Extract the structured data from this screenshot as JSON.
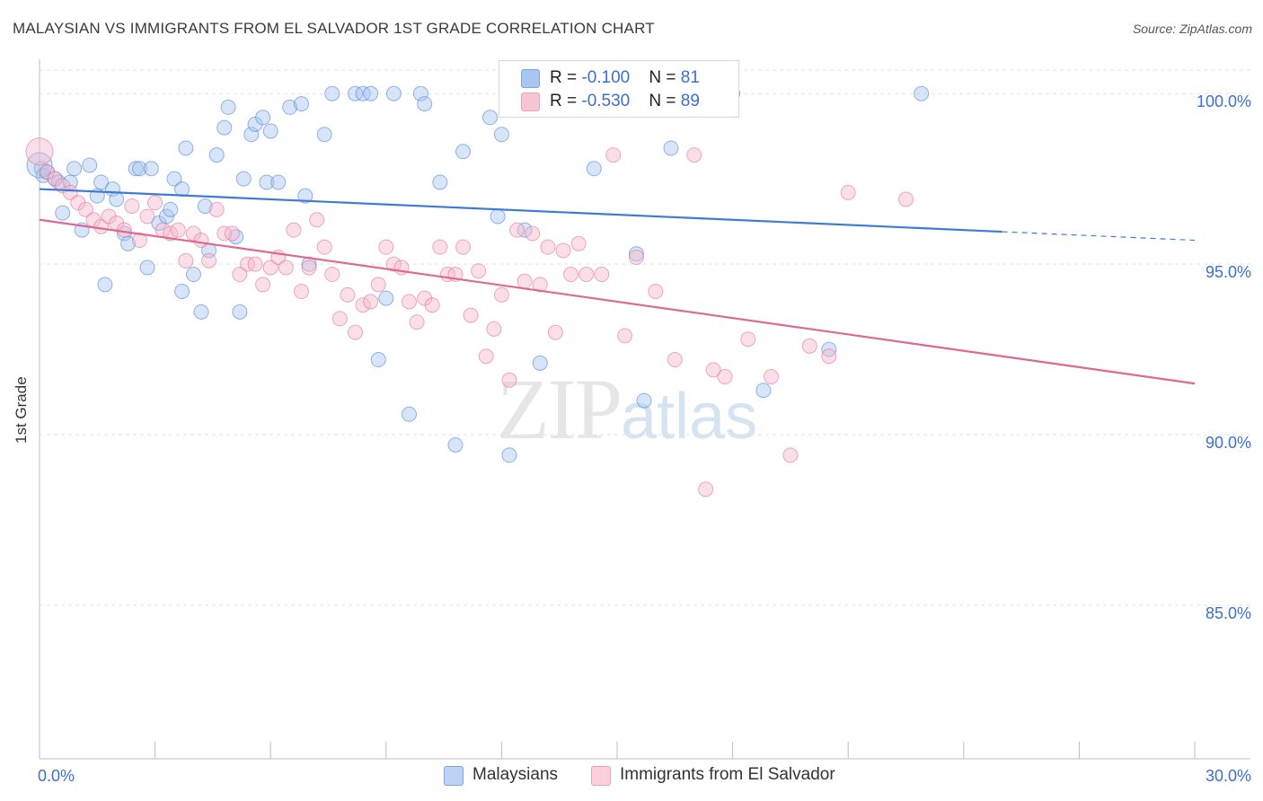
{
  "title": "MALAYSIAN VS IMMIGRANTS FROM EL SALVADOR 1ST GRADE CORRELATION CHART",
  "source": "Source: ZipAtlas.com",
  "watermark": {
    "zip": "ZIP",
    "atlas": "atlas"
  },
  "legend": {
    "rows": [
      {
        "r_label": "R = ",
        "r_value": "-0.100",
        "n_label": "N = ",
        "n_value": "81",
        "color": "#a9c6f0"
      },
      {
        "r_label": "R = ",
        "r_value": "-0.530",
        "n_label": "N = ",
        "n_value": "89",
        "color": "#f7b8cb"
      }
    ]
  },
  "bottom_legend": [
    {
      "label": "Malaysians",
      "color": "#a9c6f0"
    },
    {
      "label": "Immigrants from El Salvador",
      "color": "#f7b8cb"
    }
  ],
  "chart_data": {
    "type": "scatter",
    "xlabel": "",
    "ylabel": "1st Grade",
    "xlim": [
      0,
      30
    ],
    "ylim": [
      80.5,
      100.9
    ],
    "x_tick_labels": [
      "0.0%",
      "30.0%"
    ],
    "y_ticks": [
      85,
      90,
      95,
      100
    ],
    "y_tick_labels": [
      "85.0%",
      "90.0%",
      "95.0%",
      "100.0%"
    ],
    "grid": true,
    "series": [
      {
        "name": "Malaysians",
        "color": "#3f7bd6",
        "fill": "#a9c6f0",
        "trend": {
          "x0": 0,
          "y0": 97.2,
          "x1": 25.0,
          "y1": 95.95,
          "dash_to_x": 30,
          "dash_y1": 95.7
        },
        "points": [
          [
            0.05,
            97.8
          ],
          [
            0.1,
            97.6
          ],
          [
            0.2,
            97.7
          ],
          [
            0.4,
            97.5
          ],
          [
            0.5,
            97.4
          ],
          [
            0.6,
            96.5
          ],
          [
            0.8,
            97.4
          ],
          [
            0.9,
            97.8
          ],
          [
            1.1,
            96.0
          ],
          [
            1.3,
            97.9
          ],
          [
            1.5,
            97.0
          ],
          [
            1.6,
            97.4
          ],
          [
            1.7,
            94.4
          ],
          [
            1.9,
            97.2
          ],
          [
            2.0,
            96.9
          ],
          [
            2.2,
            95.9
          ],
          [
            2.3,
            95.6
          ],
          [
            2.5,
            97.8
          ],
          [
            2.6,
            97.8
          ],
          [
            2.8,
            94.9
          ],
          [
            2.9,
            97.8
          ],
          [
            3.1,
            96.2
          ],
          [
            3.3,
            96.4
          ],
          [
            3.4,
            96.6
          ],
          [
            3.5,
            97.5
          ],
          [
            3.7,
            97.2
          ],
          [
            3.7,
            94.2
          ],
          [
            3.8,
            98.4
          ],
          [
            4.0,
            94.7
          ],
          [
            4.2,
            93.6
          ],
          [
            4.3,
            96.7
          ],
          [
            4.4,
            95.4
          ],
          [
            4.6,
            98.2
          ],
          [
            4.8,
            99.0
          ],
          [
            4.9,
            99.6
          ],
          [
            5.1,
            95.8
          ],
          [
            5.2,
            93.6
          ],
          [
            5.3,
            97.5
          ],
          [
            5.5,
            98.8
          ],
          [
            5.6,
            99.1
          ],
          [
            5.8,
            99.3
          ],
          [
            5.9,
            97.4
          ],
          [
            6.0,
            98.9
          ],
          [
            6.2,
            97.4
          ],
          [
            6.5,
            99.6
          ],
          [
            6.8,
            99.7
          ],
          [
            6.9,
            97.0
          ],
          [
            7.0,
            95.0
          ],
          [
            7.4,
            98.8
          ],
          [
            7.6,
            100.0
          ],
          [
            8.2,
            100.0
          ],
          [
            8.4,
            100.0
          ],
          [
            8.6,
            100.0
          ],
          [
            8.8,
            92.2
          ],
          [
            9.0,
            94.0
          ],
          [
            9.2,
            100.0
          ],
          [
            9.6,
            90.6
          ],
          [
            9.9,
            100.0
          ],
          [
            10.0,
            99.7
          ],
          [
            10.4,
            97.4
          ],
          [
            10.8,
            89.7
          ],
          [
            11.0,
            98.3
          ],
          [
            11.7,
            99.3
          ],
          [
            11.9,
            96.4
          ],
          [
            12.0,
            98.8
          ],
          [
            12.2,
            89.4
          ],
          [
            12.5,
            99.6
          ],
          [
            12.6,
            96.0
          ],
          [
            13.0,
            92.1
          ],
          [
            13.3,
            100.0
          ],
          [
            14.4,
            97.8
          ],
          [
            14.8,
            100.0
          ],
          [
            15.5,
            95.3
          ],
          [
            15.7,
            91.0
          ],
          [
            16.0,
            100.0
          ],
          [
            16.4,
            98.4
          ],
          [
            18.0,
            100.0
          ],
          [
            18.8,
            91.3
          ],
          [
            20.5,
            92.5
          ],
          [
            22.9,
            100.0
          ],
          [
            0.0,
            97.9
          ]
        ],
        "sizes": {
          "0.0": 28
        }
      },
      {
        "name": "Immigrants from El Salvador",
        "color": "#e0678f",
        "fill": "#f7b8cb",
        "trend": {
          "x0": 0,
          "y0": 96.3,
          "x1": 30,
          "y1": 91.5
        },
        "points": [
          [
            0.0,
            98.3
          ],
          [
            0.2,
            97.7
          ],
          [
            0.4,
            97.5
          ],
          [
            0.6,
            97.3
          ],
          [
            0.8,
            97.1
          ],
          [
            1.0,
            96.8
          ],
          [
            1.2,
            96.6
          ],
          [
            1.4,
            96.3
          ],
          [
            1.6,
            96.1
          ],
          [
            1.8,
            96.4
          ],
          [
            2.0,
            96.2
          ],
          [
            2.2,
            96.0
          ],
          [
            2.4,
            96.7
          ],
          [
            2.6,
            95.7
          ],
          [
            2.8,
            96.4
          ],
          [
            3.0,
            96.8
          ],
          [
            3.2,
            96.0
          ],
          [
            3.4,
            95.9
          ],
          [
            3.6,
            96.0
          ],
          [
            3.8,
            95.1
          ],
          [
            4.0,
            95.9
          ],
          [
            4.2,
            95.7
          ],
          [
            4.4,
            95.1
          ],
          [
            4.6,
            96.6
          ],
          [
            4.8,
            95.9
          ],
          [
            5.0,
            95.9
          ],
          [
            5.2,
            94.7
          ],
          [
            5.4,
            95.0
          ],
          [
            5.6,
            95.0
          ],
          [
            5.8,
            94.4
          ],
          [
            6.0,
            94.9
          ],
          [
            6.2,
            95.2
          ],
          [
            6.4,
            94.9
          ],
          [
            6.6,
            96.0
          ],
          [
            6.8,
            94.2
          ],
          [
            7.0,
            94.9
          ],
          [
            7.2,
            96.3
          ],
          [
            7.4,
            95.5
          ],
          [
            7.6,
            94.7
          ],
          [
            7.8,
            93.4
          ],
          [
            8.0,
            94.1
          ],
          [
            8.2,
            93.0
          ],
          [
            8.4,
            93.8
          ],
          [
            8.6,
            93.9
          ],
          [
            8.8,
            94.4
          ],
          [
            9.0,
            95.5
          ],
          [
            9.2,
            95.0
          ],
          [
            9.4,
            94.9
          ],
          [
            9.6,
            93.9
          ],
          [
            9.8,
            93.3
          ],
          [
            10.0,
            94.0
          ],
          [
            10.2,
            93.8
          ],
          [
            10.4,
            95.5
          ],
          [
            10.6,
            94.7
          ],
          [
            10.8,
            94.7
          ],
          [
            11.0,
            95.5
          ],
          [
            11.2,
            93.5
          ],
          [
            11.4,
            94.8
          ],
          [
            11.6,
            92.3
          ],
          [
            11.8,
            93.1
          ],
          [
            12.0,
            94.1
          ],
          [
            12.2,
            91.6
          ],
          [
            12.4,
            96.0
          ],
          [
            12.6,
            94.5
          ],
          [
            12.8,
            95.9
          ],
          [
            13.0,
            94.4
          ],
          [
            13.2,
            95.5
          ],
          [
            13.4,
            93.0
          ],
          [
            13.6,
            95.4
          ],
          [
            13.8,
            94.7
          ],
          [
            14.0,
            95.6
          ],
          [
            14.2,
            94.7
          ],
          [
            14.6,
            94.7
          ],
          [
            14.9,
            98.2
          ],
          [
            15.2,
            92.9
          ],
          [
            15.5,
            95.2
          ],
          [
            16.0,
            94.2
          ],
          [
            16.5,
            92.2
          ],
          [
            17.0,
            98.2
          ],
          [
            17.3,
            88.4
          ],
          [
            17.5,
            91.9
          ],
          [
            17.8,
            91.7
          ],
          [
            18.4,
            92.8
          ],
          [
            19.0,
            91.7
          ],
          [
            19.5,
            89.4
          ],
          [
            20.0,
            92.6
          ],
          [
            20.5,
            92.3
          ],
          [
            21.0,
            97.1
          ],
          [
            22.5,
            96.9
          ]
        ],
        "sizes": {
          "0.0": 30
        }
      }
    ]
  }
}
